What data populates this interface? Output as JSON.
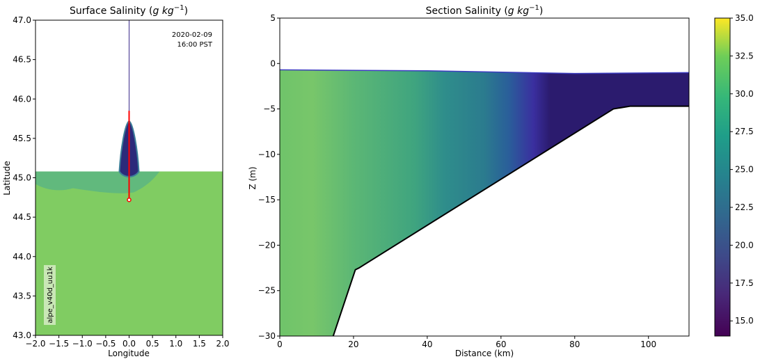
{
  "chart_data": [
    {
      "type": "heatmap",
      "title_text": "Surface Salinity",
      "title_unit_prefix": "(",
      "title_unit_g": "g",
      "title_unit_kg": "kg",
      "title_unit_exp": "−1",
      "title_unit_suffix": ")",
      "xlabel": "Longitude",
      "ylabel": "Latitude",
      "xlim": [
        -2.0,
        2.0
      ],
      "ylim": [
        43.0,
        47.0
      ],
      "xticks": [
        -2.0,
        -1.5,
        -1.0,
        -0.5,
        0.0,
        0.5,
        1.0,
        1.5,
        2.0
      ],
      "yticks": [
        43.0,
        43.5,
        44.0,
        44.5,
        45.0,
        45.5,
        46.0,
        46.5,
        47.0
      ],
      "annotation_date": "2020-02-09",
      "annotation_time": "16:00 PST",
      "run_label": "alpe_v40d_uu1k",
      "coast_latitude": 45.08,
      "river_longitude": 0.0,
      "river_top_latitude": 47.0,
      "section_line": {
        "x": [
          0.0,
          0.0
        ],
        "y": [
          44.72,
          45.85
        ]
      },
      "section_start": [
        0.0,
        44.72
      ],
      "plume_peak_latitude": 45.72,
      "ambient_salinity": 30.0
    },
    {
      "type": "heatmap",
      "title_text": "Section Salinity",
      "title_unit_prefix": "(",
      "title_unit_g": "g",
      "title_unit_kg": "kg",
      "title_unit_exp": "−1",
      "title_unit_suffix": ")",
      "xlabel": "Distance (km)",
      "ylabel": "Z (m)",
      "xlim": [
        0,
        111
      ],
      "ylim": [
        -30,
        5
      ],
      "xticks": [
        0,
        20,
        40,
        60,
        80,
        100
      ],
      "yticks": [
        5,
        0,
        -5,
        -10,
        -15,
        -20,
        -25,
        -30
      ],
      "surface": {
        "x": [
          0,
          40,
          80,
          111
        ],
        "z": [
          -0.7,
          -0.8,
          -1.1,
          -1.0
        ]
      },
      "bottom": {
        "x": [
          14.5,
          20.5,
          21.5,
          90.5,
          95,
          111
        ],
        "z": [
          -30,
          -22.7,
          -22.5,
          -5,
          -4.7,
          -4.7
        ]
      },
      "front_center_km": 62,
      "ambient_salinity": 30.0,
      "fresh_salinity": 14.0
    }
  ],
  "colorbar": {
    "vmin": 14.0,
    "vmax": 35.0,
    "ticks": [
      "15.0",
      "17.5",
      "20.0",
      "22.5",
      "25.0",
      "27.5",
      "30.0",
      "32.5",
      "35.0"
    ],
    "colormap": "viridis"
  }
}
